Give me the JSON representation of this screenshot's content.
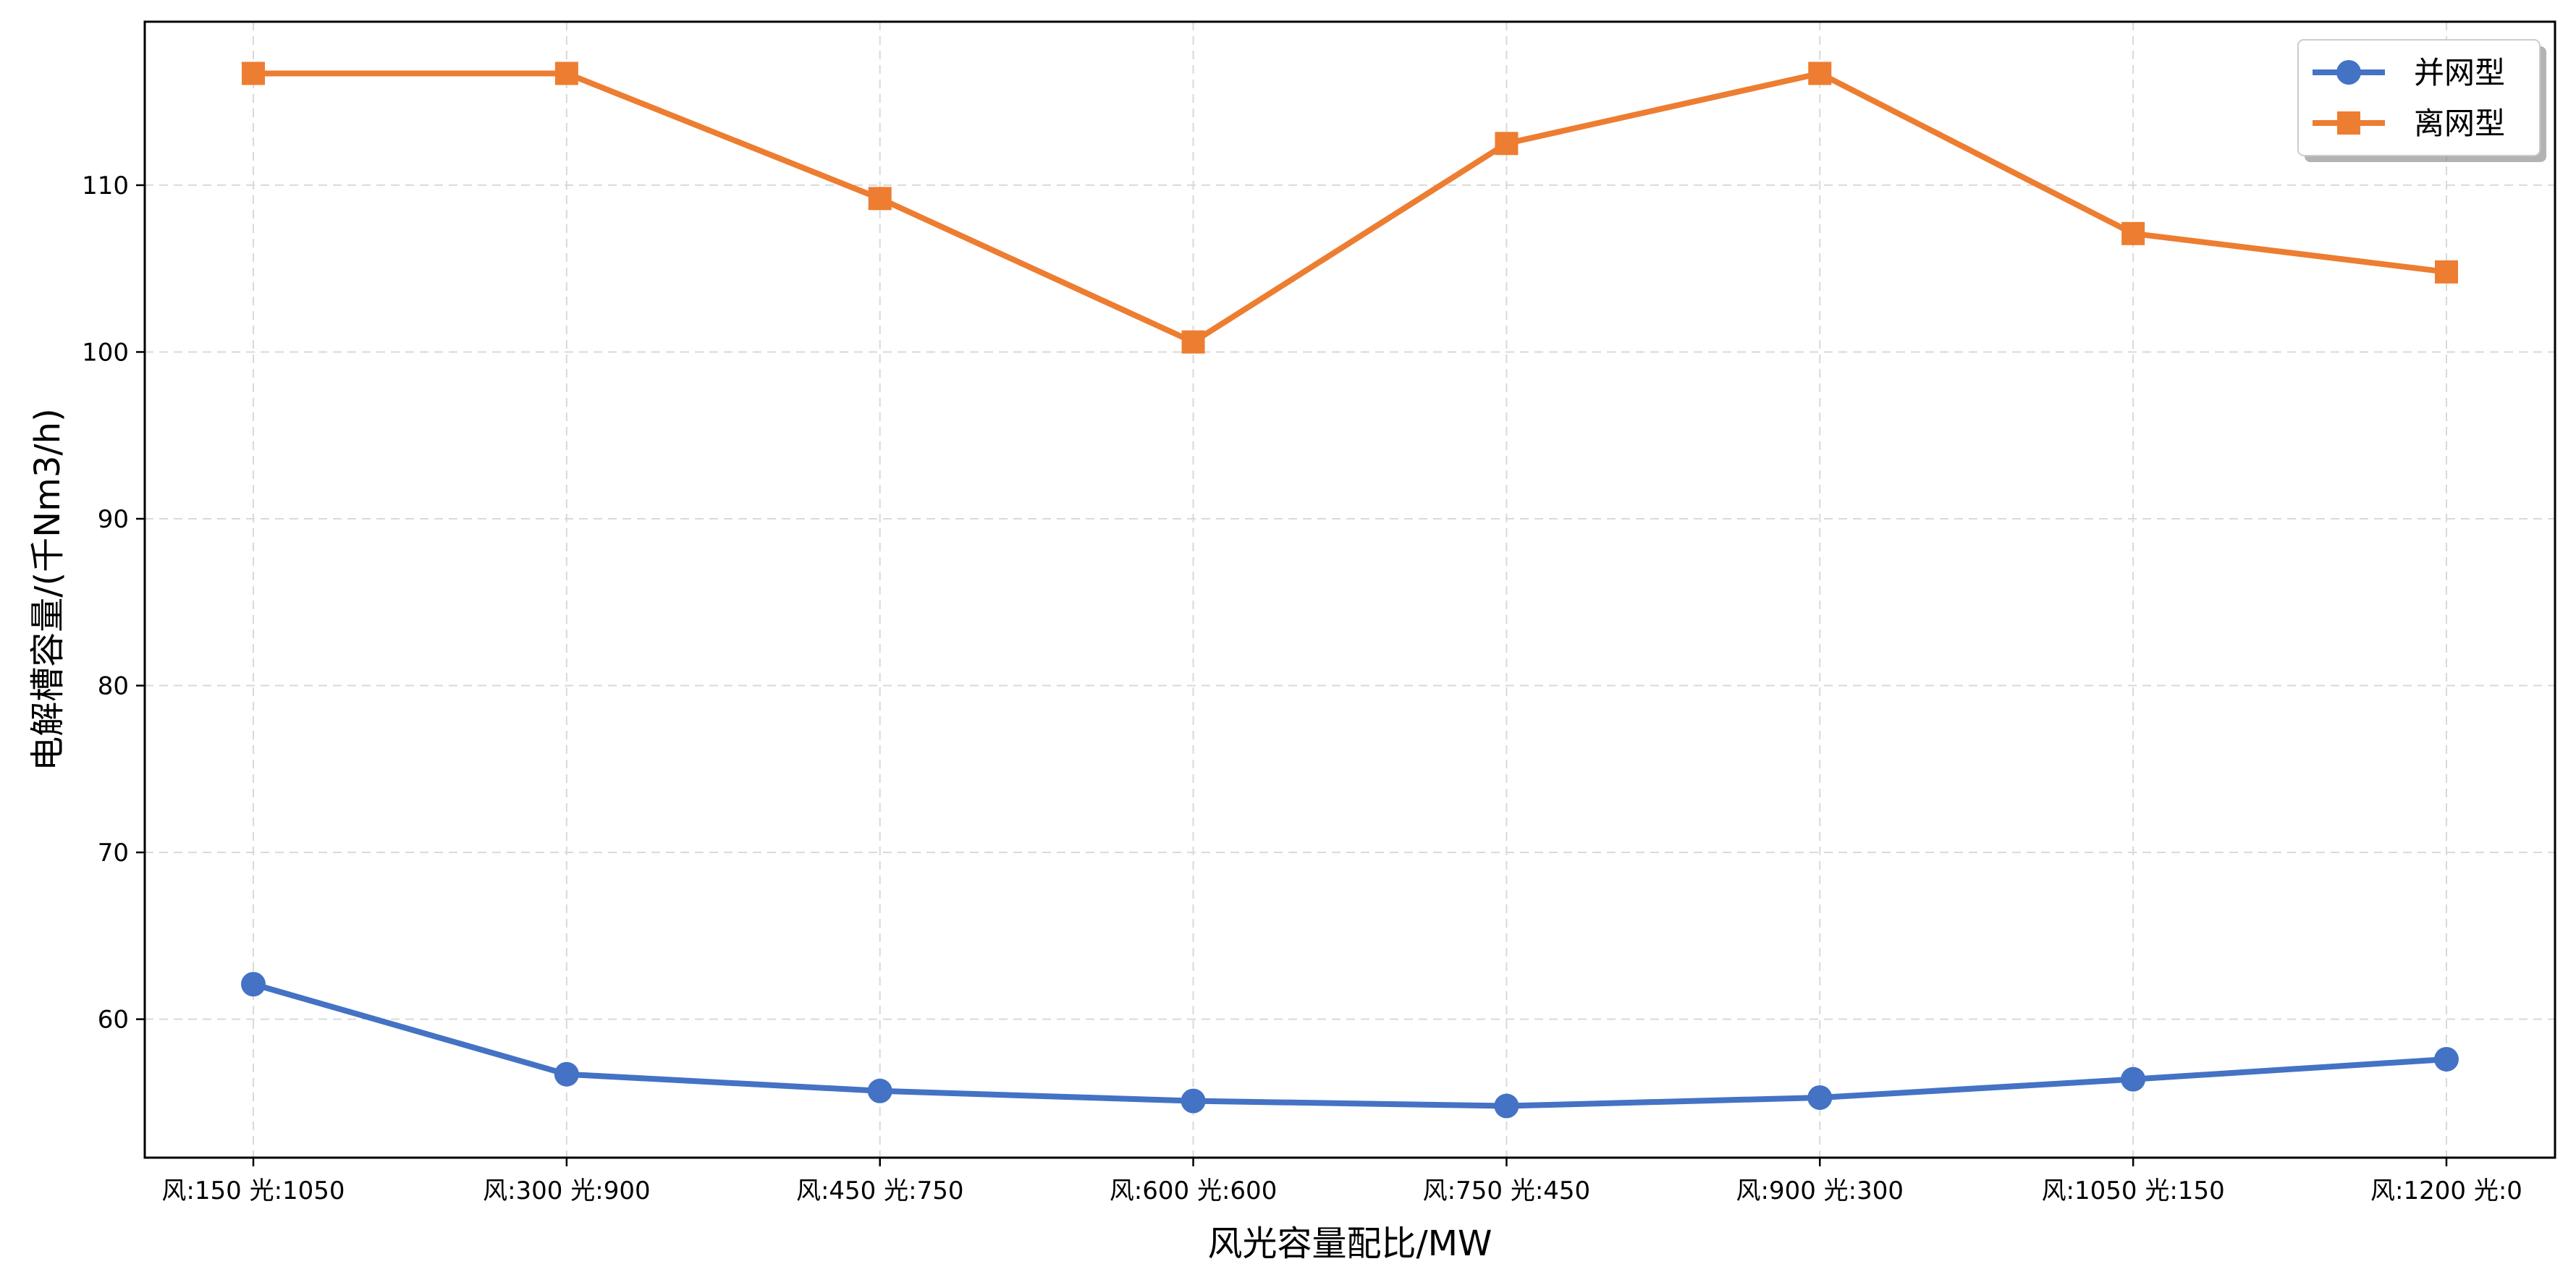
{
  "chart_data": {
    "type": "line",
    "title": "",
    "xlabel": "风光容量配比/MW",
    "ylabel": "电解槽容量/(千Nm3/h)",
    "categories": [
      "风:150 光:1050",
      "风:300 光:900",
      "风:450 光:750",
      "风:600 光:600",
      "风:750 光:450",
      "风:900 光:300",
      "风:1050 光:150",
      "风:1200 光:0"
    ],
    "ylim": [
      51.7,
      119.8
    ],
    "yticks": [
      60,
      70,
      80,
      90,
      100,
      110
    ],
    "grid": true,
    "legend_position": "top-right",
    "series": [
      {
        "name": "并网型",
        "marker": "circle",
        "color": "#4472C4",
        "values": [
          62.1,
          56.7,
          55.7,
          55.1,
          54.8,
          55.3,
          56.4,
          57.6
        ]
      },
      {
        "name": "离网型",
        "marker": "square",
        "color": "#ED7D31",
        "values": [
          116.7,
          116.7,
          109.2,
          100.6,
          112.5,
          116.7,
          107.1,
          104.8
        ]
      }
    ]
  }
}
